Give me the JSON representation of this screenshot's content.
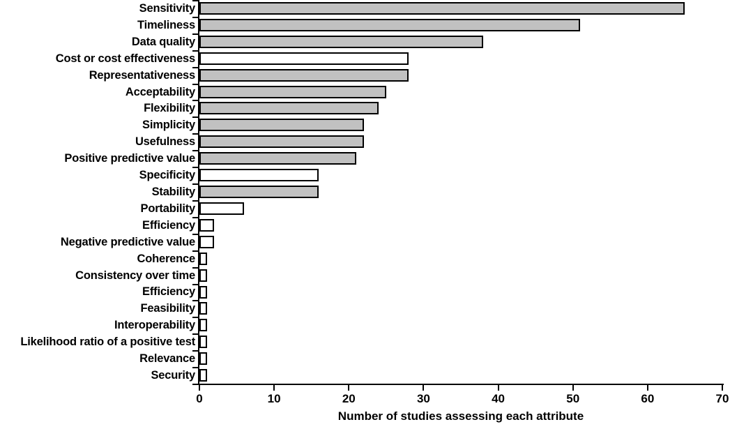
{
  "chart_data": {
    "type": "bar",
    "orientation": "horizontal",
    "title": "",
    "xlabel": "Number of studies assessing each attribute",
    "ylabel": "",
    "xlim": [
      0,
      70
    ],
    "xticks": [
      0,
      10,
      20,
      30,
      40,
      50,
      60,
      70
    ],
    "grid": false,
    "legend": false,
    "categories": [
      "Sensitivity",
      "Timeliness",
      "Data quality",
      "Cost or cost effectiveness",
      "Representativeness",
      "Acceptability",
      "Flexibility",
      "Simplicity",
      "Usefulness",
      "Positive predictive value",
      "Specificity",
      "Stability",
      "Portability",
      "Efficiency",
      "Negative predictive value",
      "Coherence",
      "Consistency over time",
      "Efficiency",
      "Feasibility",
      "Interoperability",
      "Likelihood ratio of a positive test",
      "Relevance",
      "Security"
    ],
    "values": [
      65,
      51,
      38,
      28,
      28,
      25,
      24,
      22,
      22,
      21,
      16,
      16,
      6,
      2,
      2,
      1,
      1,
      1,
      1,
      1,
      1,
      1,
      1
    ],
    "fills": [
      "gray",
      "gray",
      "gray",
      "white",
      "gray",
      "gray",
      "gray",
      "gray",
      "gray",
      "gray",
      "white",
      "gray",
      "white",
      "white",
      "white",
      "white",
      "white",
      "white",
      "white",
      "white",
      "white",
      "white",
      "white"
    ],
    "colors": {
      "gray_fill": "#c1c1c1",
      "white_fill": "#ffffff",
      "bar_border": "#000000",
      "axis": "#000000",
      "text": "#000000"
    }
  }
}
